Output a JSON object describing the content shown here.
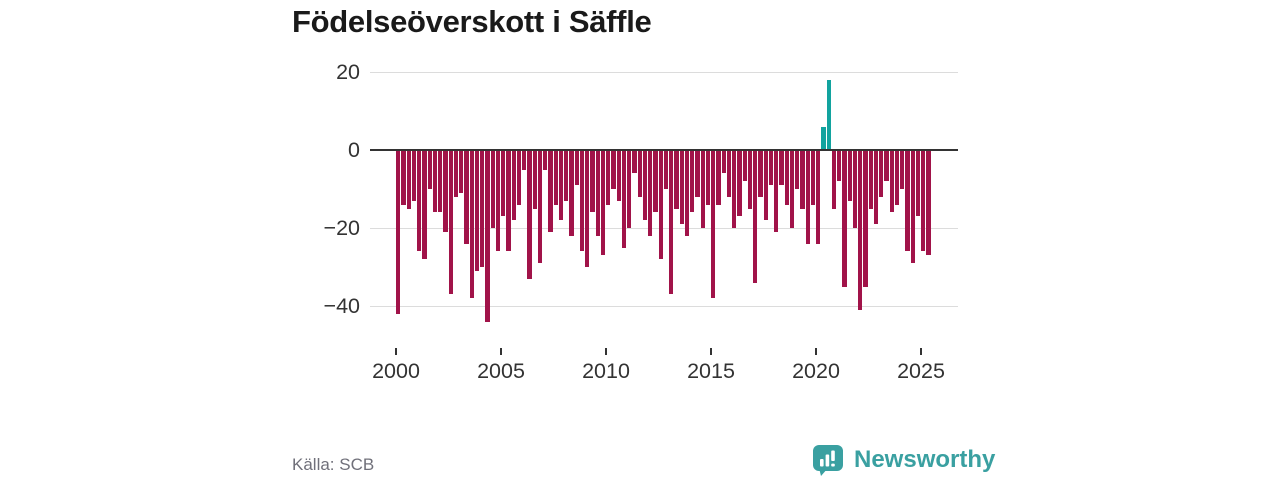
{
  "header": {
    "title": "Födelseöverskott i Säffle"
  },
  "footer": {
    "source": "Källa: SCB",
    "brand": "Newsworthy",
    "brand_color": "#3aa0a1"
  },
  "chart_data": {
    "type": "bar",
    "title": "Födelseöverskott i Säffle",
    "frequency": "quarterly",
    "start_period": "2000-Q1",
    "end_period": "2025-Q2",
    "values": [
      -42,
      -14,
      -15,
      -13,
      -26,
      -28,
      -10,
      -16,
      -16,
      -21,
      -37,
      -12,
      -11,
      -24,
      -38,
      -31,
      -30,
      -44,
      -20,
      -26,
      -17,
      -26,
      -18,
      -14,
      -5,
      -33,
      -15,
      -29,
      -5,
      -21,
      -14,
      -18,
      -13,
      -22,
      -9,
      -26,
      -30,
      -16,
      -22,
      -27,
      -14,
      -10,
      -13,
      -25,
      -20,
      -6,
      -12,
      -18,
      -22,
      -16,
      -28,
      -10,
      -37,
      -15,
      -19,
      -22,
      -16,
      -12,
      -20,
      -14,
      -38,
      -14,
      -6,
      -12,
      -20,
      -17,
      -8,
      -15,
      -34,
      -12,
      -18,
      -9,
      -21,
      -9,
      -14,
      -20,
      -10,
      -15,
      -24,
      -14,
      -24,
      6,
      18,
      -15,
      -8,
      -35,
      -13,
      -20,
      -41,
      -35,
      -15,
      -19,
      -12,
      -8,
      -16,
      -14,
      -10,
      -26,
      -29,
      -17,
      -26,
      -27
    ],
    "yticks": [
      20,
      0,
      -20,
      -40
    ],
    "xticks": [
      2000,
      2005,
      2010,
      2015,
      2020,
      2025
    ],
    "ylim": [
      -46,
      22
    ],
    "grid": true,
    "legend": false,
    "colors": {
      "negative": "#a11349",
      "positive": "#12a39f"
    }
  }
}
